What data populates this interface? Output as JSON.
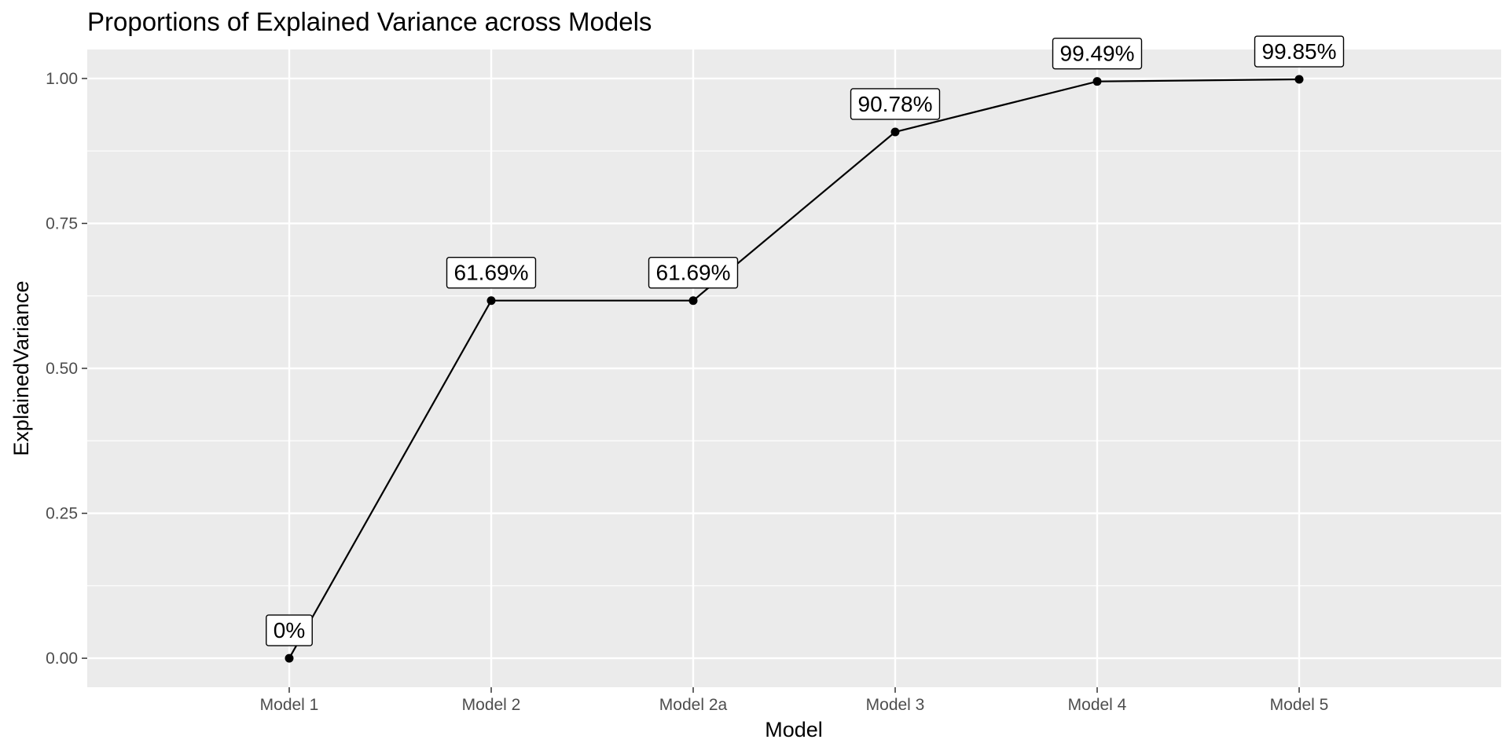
{
  "chart_data": {
    "type": "line",
    "title": "Proportions of Explained Variance across Models",
    "xlabel": "Model",
    "ylabel": "ExplainedVariance",
    "categories": [
      "Model 1",
      "Model 2",
      "Model 2a",
      "Model 3",
      "Model 4",
      "Model 5"
    ],
    "values": [
      0,
      0.6169,
      0.6169,
      0.9078,
      0.9949,
      0.9985
    ],
    "point_labels": [
      "0%",
      "61.69%",
      "61.69%",
      "90.78%",
      "99.49%",
      "99.85%"
    ],
    "y_ticks": [
      0,
      0.25,
      0.5,
      0.75,
      1.0
    ],
    "y_tick_labels": [
      "0.00",
      "0.25",
      "0.50",
      "0.75",
      "1.00"
    ],
    "ylim": [
      -0.05,
      1.05
    ],
    "grid": true,
    "legend": "none",
    "colors": {
      "panel_background": "#ebebeb",
      "grid_major": "#ffffff",
      "line": "#000000",
      "point": "#000000",
      "tick_text": "#4d4d4d"
    }
  }
}
